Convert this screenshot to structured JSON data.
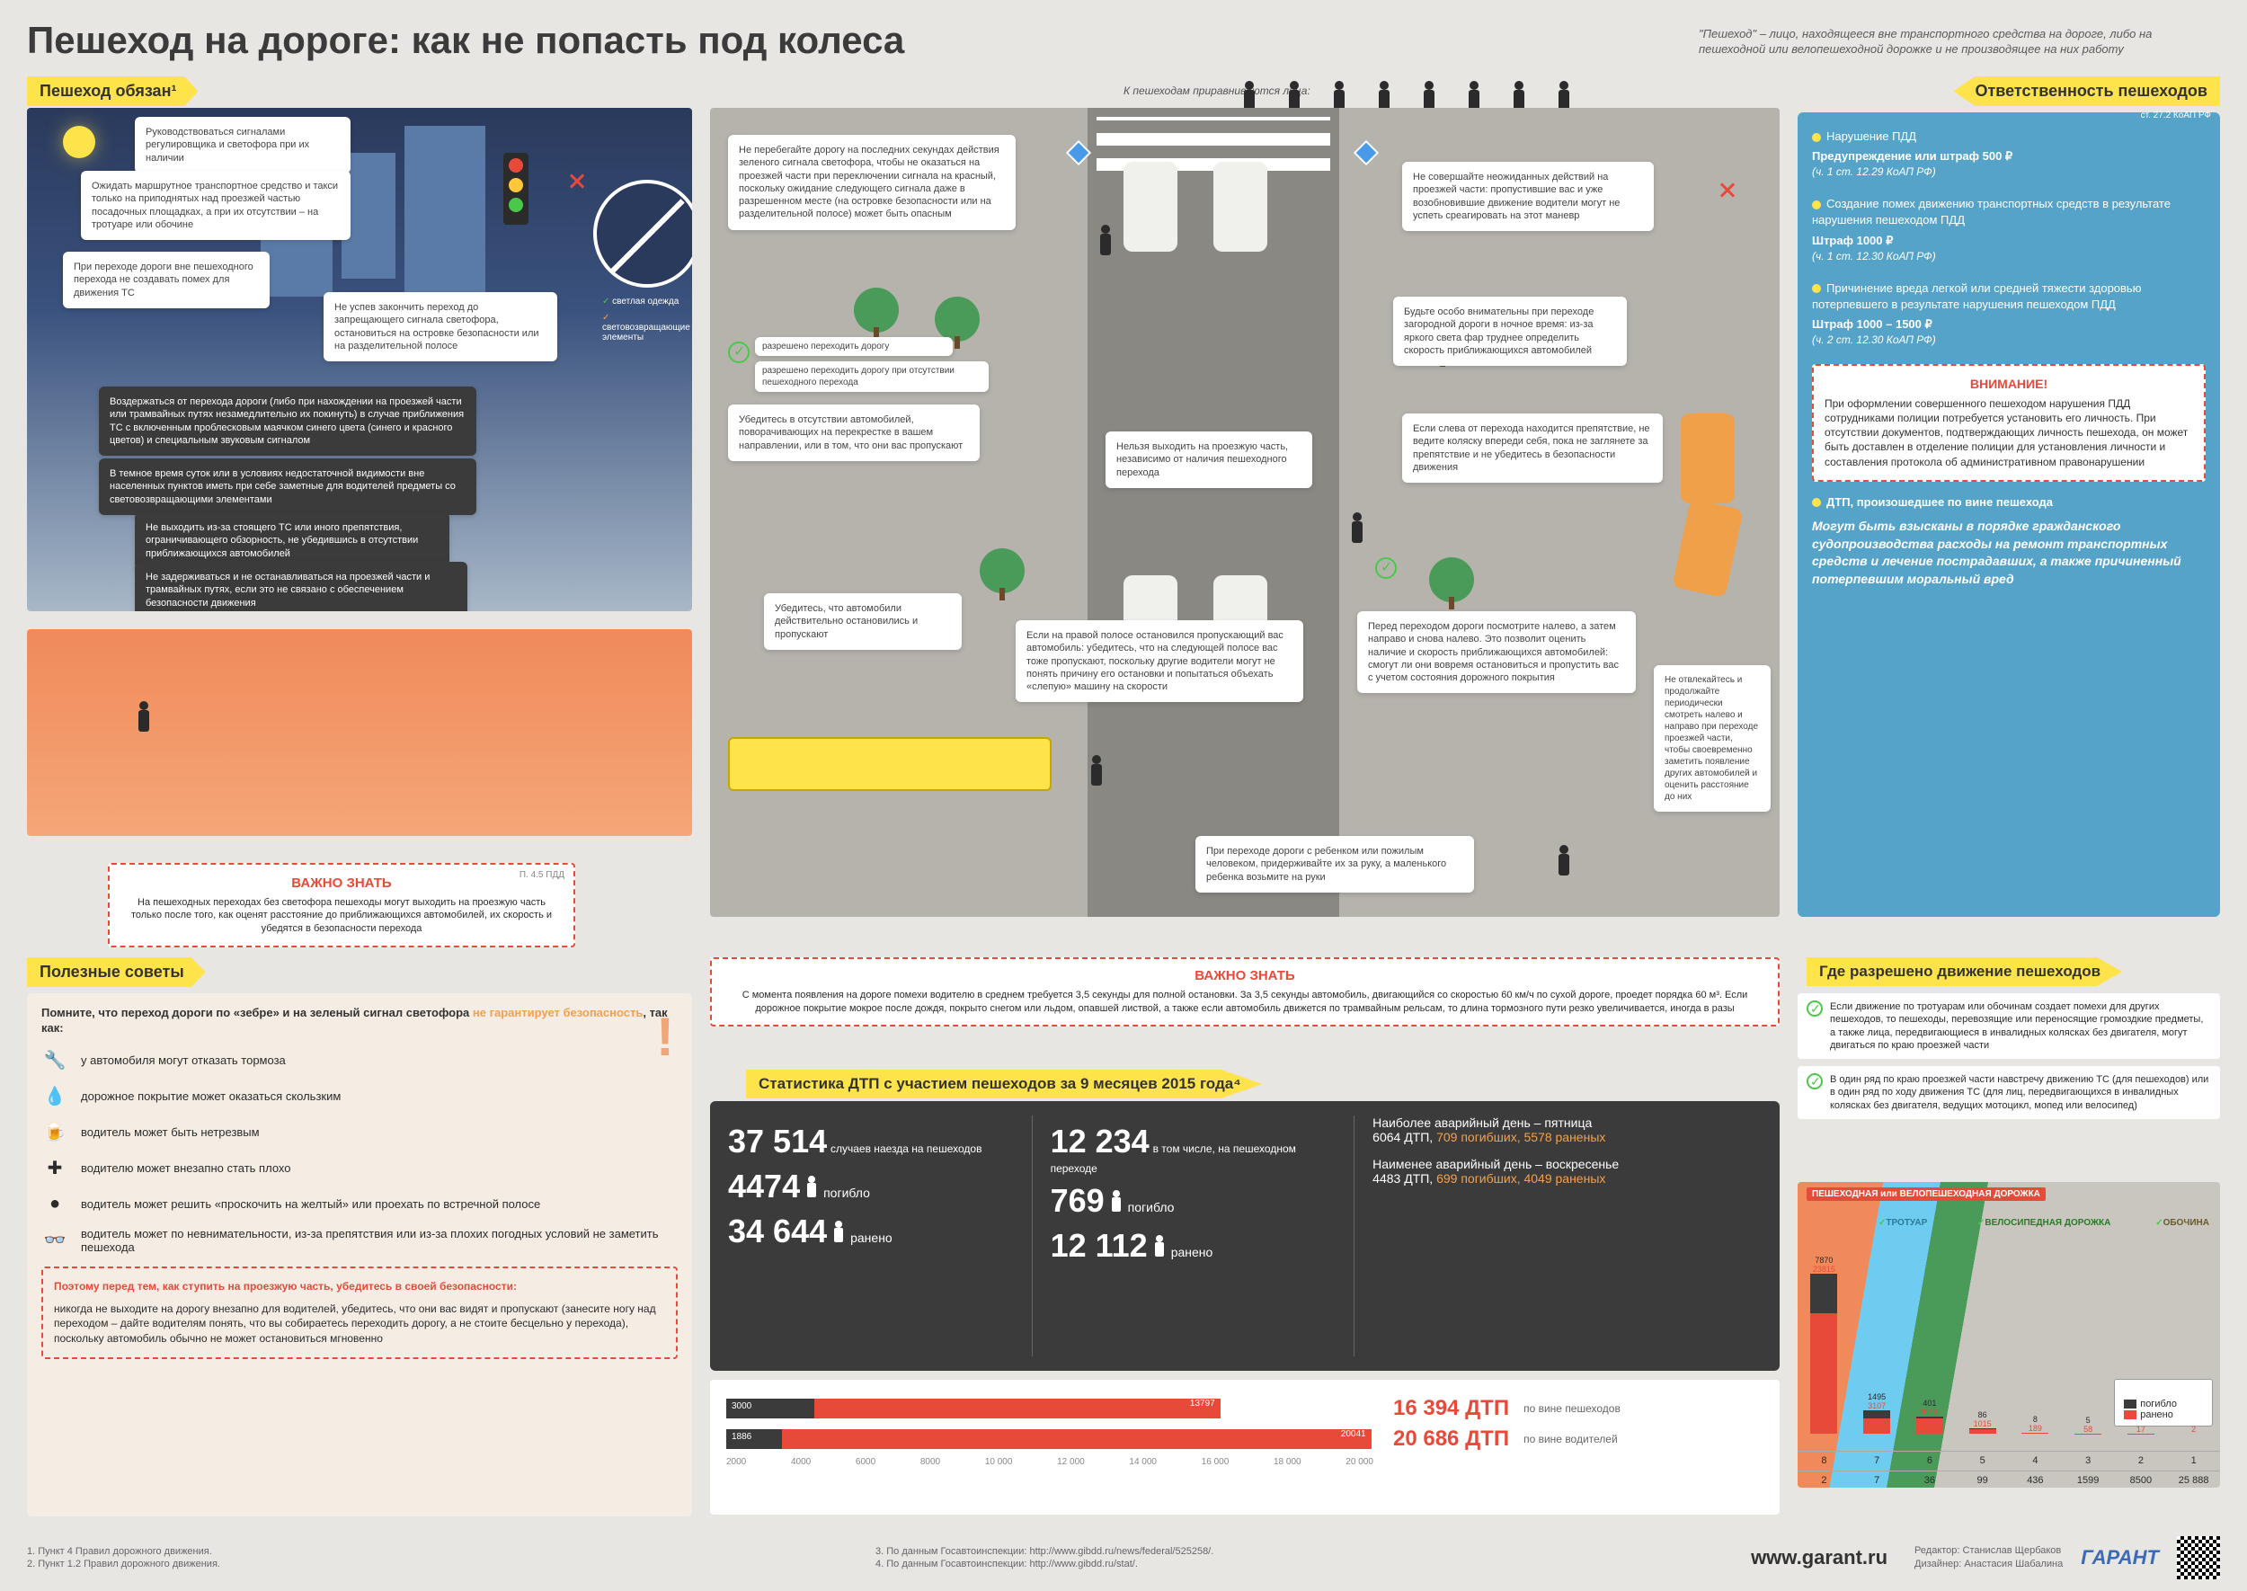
{
  "colors": {
    "yellow": "#ffe34a",
    "orange": "#f5a04a",
    "red": "#e84a3a",
    "blue": "#56a3c9",
    "green": "#4ac84a",
    "dark": "#3b3b3b",
    "bg": "#e8e6e3"
  },
  "header": {
    "title": "Пешеход на дороге: как не попасть под колеса",
    "subtitle": "\"Пешеход\" – лицо, находящееся вне транспортного средства на дороге, либо на пешеходной или велопешеходной дорожке и не производящее на них работу"
  },
  "tabs": {
    "obligations": "Пешеход обязан¹",
    "tips": "Полезные советы",
    "liability": "Ответственность пешеходов",
    "stats": "Статистика ДТП с участием пешеходов за 9 месяцев 2015 года⁴",
    "where": "Где разрешено движение пешеходов"
  },
  "equated": {
    "label": "К пешеходам приравниваются лица:",
    "icons": [
      "wheelchair-icon",
      "scooter-icon",
      "kick-scooter-icon",
      "bicycle-push-icon",
      "motorcycle-push-icon",
      "sled-icon",
      "cart-icon",
      "stroller-icon"
    ]
  },
  "night_callouts": {
    "c1": "Руководствоваться сигналами регулировщика и светофора при их наличии",
    "c2": "Ожидать маршрутное транспортное средство и такси только на приподнятых над проезжей частью посадочных площадках, а при их отсутствии – на тротуаре или обочине",
    "c3": "При переходе дороги вне пешеходного перехода не создавать помех для движения ТС",
    "c4": "Не успев закончить переход до запрещающего сигнала светофора, остановиться на островке безопасности или на разделительной полосе",
    "c5": "Воздержаться от перехода дороги (либо при нахождении на проезжей части или трамвайных путях незамедлительно их покинуть) в случае приближения ТС с включенным проблесковым маячком синего цвета (синего и красного цветов) и специальным звуковым сигналом",
    "c6": "В темное время суток или в условиях недостаточной видимости вне населенных пунктов иметь при себе заметные для водителей предметы со световозвращающими элементами",
    "c7": "Не выходить из-за стоящего ТС или иного препятствия, ограничивающего обзорность, не убедившись в отсутствии приближающихся автомобилей",
    "c8": "Не задерживаться и не останавливаться на проезжей части и трамвайных путях, если это не связано с обеспечением безопасности движения",
    "nosign_a": "светлая одежда",
    "nosign_b": "световозвращающие элементы"
  },
  "center_callouts": {
    "r1": "Не перебегайте дорогу на последних секундах действия зеленого сигнала светофора, чтобы не оказаться на проезжей части при переключении сигнала на красный, поскольку ожидание следующего сигнала даже в разрешенном месте (на островке безопасности или на разделительной полосе) может быть опасным",
    "r2": "Не совершайте неожиданных действий на проезжей части: пропустившие вас и уже возобновившие движение водители могут не успеть среагировать на этот маневр",
    "r3": "разрешено переходить дорогу",
    "r4": "разрешено переходить дорогу при отсутствии пешеходного перехода",
    "r5": "Убедитесь в отсутствии автомобилей, поворачивающих на перекрестке в вашем направлении, или в том, что они вас пропускают",
    "r6": "Будьте особо внимательны при переходе загородной дороги в ночное время: из-за яркого света фар труднее определить скорость приближающихся автомобилей",
    "r7": "Нельзя выходить на проезжую часть, независимо от наличия пешеходного перехода",
    "r8": "Если слева от перехода находится препятствие, не ведите коляску впереди себя, пока не заглянете за препятствие и не убедитесь в безопасности движения",
    "r9": "Убедитесь, что автомобили действительно остановились и пропускают",
    "r10": "Если на правой полосе остановился пропускающий вас автомобиль: убедитесь, что на следующей полосе вас тоже пропускают, поскольку другие водители могут не понять причину его остановки и попытаться объехать «слепую» машину на скорости",
    "r11": "Перед переходом дороги посмотрите налево, а затем направо и снова налево. Это позволит оценить наличие и скорость приближающихся автомобилей: смогут ли они вовремя остановиться и пропустить вас с учетом состояния дорожного покрытия",
    "r12": "Не отвлекайтесь и продолжайте периодически смотреть налево и направо при переходе проезжей части, чтобы своевременно заметить появление других автомобилей и оценить расстояние до них",
    "r13": "При переходе дороги с ребенком или пожилым человеком, придерживайте их за руку, а маленького ребенка возьмите на руки"
  },
  "important1": {
    "title": "ВАЖНО ЗНАТЬ",
    "ref": "П. 4.5 ПДД",
    "text": "На пешеходных переходах без светофора пешеходы могут выходить на проезжую часть только после того, как оценят расстояние до приближающихся автомобилей, их скорость и убедятся в безопасности перехода"
  },
  "important2": {
    "title": "ВАЖНО ЗНАТЬ",
    "text": "С момента появления на дороге помехи водителю в среднем требуется 3,5 секунды для полной остановки. За 3,5 секунды автомобиль, двигающийся со скоростью 60 км/ч по сухой дороге, проедет порядка 60 м³. Если дорожное покрытие мокрое после дождя, покрыто снегом или льдом, опавшей листвой, а также если автомобиль движется по трамвайным рельсам, то длина тормозного пути резко увеличивается, иногда в разы"
  },
  "liability": {
    "ref": "ст. 27.2 КоАП РФ",
    "items": [
      {
        "bullet": true,
        "text": "Нарушение ПДД",
        "penalty": "Предупреждение или штраф 500 ₽",
        "law": "(ч. 1 ст. 12.29 КоАП РФ)"
      },
      {
        "bullet": true,
        "text": "Создание помех движению транспортных средств в результате нарушения пешеходом ПДД",
        "penalty": "Штраф 1000 ₽",
        "law": "(ч. 1 ст. 12.30 КоАП РФ)"
      },
      {
        "bullet": true,
        "text": "Причинение вреда легкой или средней тяжести здоровью потерпевшего в результате нарушения пешеходом ПДД",
        "penalty": "Штраф 1000 – 1500 ₽",
        "law": "(ч. 2 ст. 12.30 КоАП РФ)"
      }
    ],
    "warning": {
      "title": "ВНИМАНИЕ!",
      "text": "При оформлении совершенного пешеходом нарушения ПДД сотрудниками полиции потребуется установить его личность. При отсутствии документов, подтверждающих личность пешехода, он может быть доставлен в отделение полиции для установления личности и составления протокола об административном правонарушении"
    },
    "civil": {
      "bullet": true,
      "title": "ДТП, произошедшее по вине пешехода",
      "text": "Могут быть взысканы в порядке гражданского судопроизводства расходы на ремонт транспортных средств и лечение пострадавших, а также причиненный потерпевшим моральный вред"
    }
  },
  "tips": {
    "intro_a": "Помните, что переход дороги по «зебре» и на зеленый сигнал светофора ",
    "intro_b": "не гарантирует безопасность",
    "intro_c": ", так как:",
    "rows": [
      {
        "icon": "wrench-icon",
        "text": "у автомобиля могут отказать тормоза"
      },
      {
        "icon": "drop-icon",
        "text": "дорожное покрытие может оказаться скользким"
      },
      {
        "icon": "glass-icon",
        "text": "водитель может быть нетрезвым"
      },
      {
        "icon": "plus-icon",
        "text": "водителю может внезапно стать плохо"
      },
      {
        "icon": "circle-icon",
        "text": "водитель может решить «проскочить на желтый» или проехать по встречной полосе"
      },
      {
        "icon": "glasses-icon",
        "text": "водитель может по невнимательности, из-за препятствия или из-за плохих погодных условий не заметить пешехода"
      }
    ],
    "safety_title": "Поэтому перед тем, как ступить на проезжую часть, убедитесь в своей безопасности:",
    "safety_text": "никогда не выходите на дорогу внезапно для водителей, убедитесь, что они вас видят и пропускают (занесите ногу над переходом – дайте водителям понять, что вы собираетесь переходить дорогу, а не стоите бесцельно у перехода), поскольку автомобиль обычно не может остановиться мгновенно"
  },
  "stats": {
    "block1": {
      "n1": "37 514",
      "t1": "случаев наезда на пешеходов",
      "n2": "4474",
      "t2": "погибло",
      "n3": "34 644",
      "t3": "ранено"
    },
    "block2": {
      "n1": "12 234",
      "t1": "в том числе, на пешеходном переходе",
      "n2": "769",
      "t2": "погибло",
      "n3": "12 112",
      "t3": "ранено"
    },
    "block3": {
      "l1": "Наиболее аварийный день – пятница",
      "d1a": "6064 ДТП,",
      "d1b": "709 погибших, 5578 раненых",
      "l2": "Наименее аварийный день – воскресенье",
      "d2a": "4483 ДТП,",
      "d2b": "699 погибших, 4049 раненых"
    }
  },
  "barchart": {
    "axis": [
      "2000",
      "4000",
      "6000",
      "8000",
      "10 000",
      "12 000",
      "14 000",
      "16 000",
      "18 000",
      "20 000"
    ],
    "row1": {
      "a": 3000,
      "b": 13797,
      "total": "16 394 ДТП",
      "label": "по вине пешеходов",
      "col_a": "#3b3b3b",
      "col_b": "#e84a3a"
    },
    "row2": {
      "a": 1886,
      "b": 20041,
      "total": "20 686 ДТП",
      "label": "по вине водителей",
      "col_a": "#3b3b3b",
      "col_b": "#e84a3a"
    },
    "max": 22000
  },
  "where": {
    "notes": [
      "Если движение по тротуарам или обочинам создает помехи для других пешеходов, то пешеходы, перевозящие или переносящие громоздкие предметы, а также лица, передвигающиеся в инвалидных колясках без двигателя, могут двигаться по краю проезжей части",
      "В один ряд по краю проезжей части навстречу движению ТС (для пешеходов) или в один ряд по ходу движения ТС (для лиц, передвигающихся в инвалидных колясках без двигателя, ведущих мотоцикл, мопед или велосипед)"
    ],
    "lane_labels": {
      "a": "ПЕШЕХОДНАЯ или ВЕЛОПЕШЕХОДНАЯ ДОРОЖКА",
      "b": "ТРОТУАР",
      "c": "ВЕЛОСИПЕДНАЯ ДОРОЖКА",
      "d": "ОБОЧИНА",
      "absent": "(при отсутствии"
    },
    "axis_top": "Полоса",
    "axis_bot": "ДТП",
    "lanes": [
      "8",
      "7",
      "6",
      "5",
      "4",
      "3",
      "2",
      "1"
    ],
    "dtp": [
      "2",
      "7",
      "36",
      "99",
      "436",
      "1599",
      "8500",
      "25 888"
    ],
    "bars": [
      {
        "died": 7870,
        "inj": 23815
      },
      {
        "died": 1495,
        "inj": 3107
      },
      {
        "died": 401,
        "inj": 3015
      },
      {
        "died": 86,
        "inj": 1015
      },
      {
        "died": 8,
        "inj": 189
      },
      {
        "died": 5,
        "inj": 58
      },
      {
        "died": 3,
        "inj": 17
      },
      {
        "died": 1,
        "inj": 2
      }
    ],
    "legend": {
      "a": "погибло",
      "b": "ранено"
    },
    "max_bar": 32000
  },
  "footer": {
    "notes": [
      "1. Пункт 4 Правил дорожного движения.",
      "2. Пункт 1.2 Правил дорожного движения.",
      "3. По данным Госавтоинспекции: http://www.gibdd.ru/news/federal/525258/.",
      "4. По данным Госавтоинспекции: http://www.gibdd.ru/stat/."
    ],
    "site": "www.garant.ru",
    "credits_a": "Редактор:  Станислав Щербаков",
    "credits_b": "Дизайнер:  Анастасия Шабалина",
    "logo": "ГАРАНТ"
  }
}
